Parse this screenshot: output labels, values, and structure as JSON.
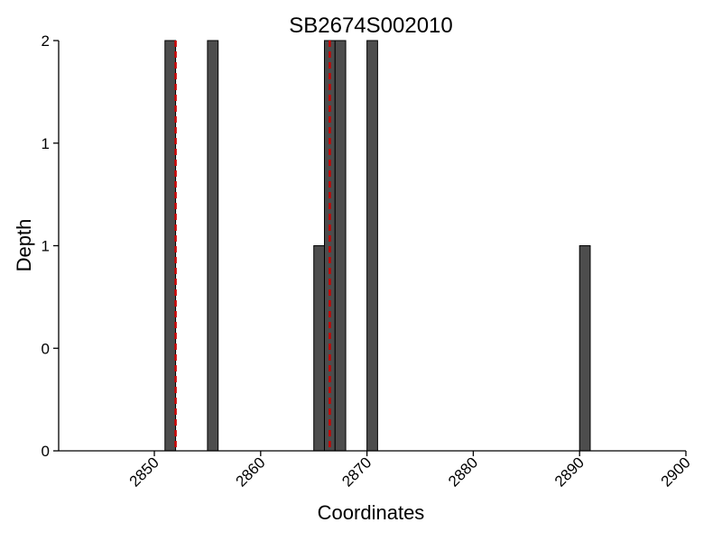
{
  "chart_data": {
    "type": "bar",
    "title": "SB2674S002010",
    "xlabel": "Coordinates",
    "ylabel": "Depth",
    "xlim": [
      2841,
      2900
    ],
    "ylim": [
      0,
      2
    ],
    "x_ticks": [
      2850,
      2860,
      2870,
      2880,
      2890,
      2900
    ],
    "y_tick_values": [
      0,
      0.5,
      1,
      1.5,
      2
    ],
    "y_tick_labels": [
      "0",
      "0",
      "1",
      "1",
      "2"
    ],
    "bar_width": 1,
    "grid": false,
    "colors": {
      "bar_fill": "#4d4d4d",
      "bar_stroke": "#000000",
      "marker_line": "#cc0000"
    },
    "series": [
      {
        "x": [
          2851.5,
          2855.5,
          2865.5,
          2866.5,
          2867.5,
          2870.5,
          2890.5
        ],
        "values": [
          2,
          2,
          1,
          2,
          2,
          2,
          1
        ]
      }
    ],
    "marker_lines_x": [
      2852,
      2866.5
    ]
  }
}
